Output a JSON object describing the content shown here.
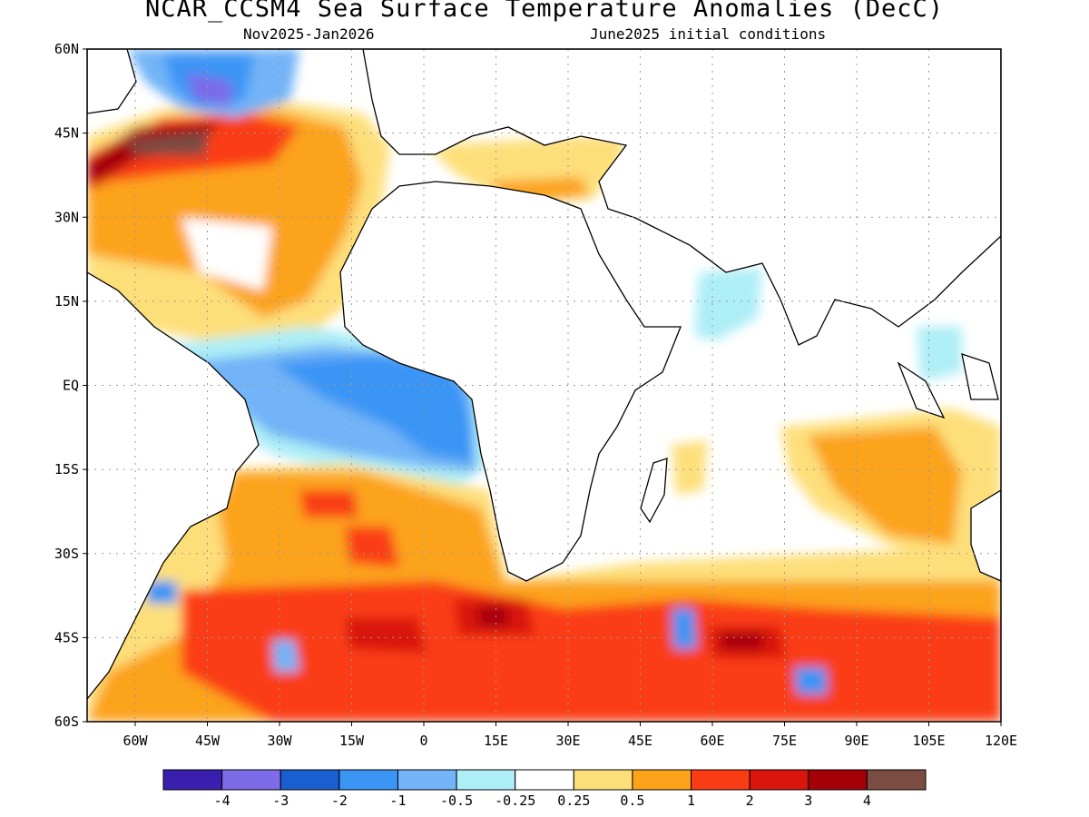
{
  "title": "NCAR_CCSM4 Sea Surface Temperature Anomalies (DecC)",
  "period": "Nov2025-Jan2026",
  "initial_conditions": "June2025 initial conditions",
  "map": {
    "lon_range": [
      -70,
      120
    ],
    "lat_range": [
      -60,
      60
    ],
    "lat_ticks": [
      {
        "value": 60,
        "label": "60N"
      },
      {
        "value": 45,
        "label": "45N"
      },
      {
        "value": 30,
        "label": "30N"
      },
      {
        "value": 15,
        "label": "15N"
      },
      {
        "value": 0,
        "label": "EQ"
      },
      {
        "value": -15,
        "label": "15S"
      },
      {
        "value": -30,
        "label": "30S"
      },
      {
        "value": -45,
        "label": "45S"
      },
      {
        "value": -60,
        "label": "60S"
      }
    ],
    "lon_ticks": [
      {
        "value": -60,
        "label": "60W"
      },
      {
        "value": -45,
        "label": "45W"
      },
      {
        "value": -30,
        "label": "30W"
      },
      {
        "value": -15,
        "label": "15W"
      },
      {
        "value": 0,
        "label": "0"
      },
      {
        "value": 15,
        "label": "15E"
      },
      {
        "value": 30,
        "label": "30E"
      },
      {
        "value": 45,
        "label": "45E"
      },
      {
        "value": 60,
        "label": "60E"
      },
      {
        "value": 75,
        "label": "75E"
      },
      {
        "value": 90,
        "label": "90E"
      },
      {
        "value": 105,
        "label": "105E"
      },
      {
        "value": 120,
        "label": "120E"
      }
    ],
    "gridlines": true
  },
  "colorbar": {
    "colors": [
      "#3a1fae",
      "#7d6be8",
      "#1a5fd0",
      "#3a95f5",
      "#72b4f7",
      "#aeeef6",
      "#ffffff",
      "#fddf7a",
      "#fca31a",
      "#fa3c14",
      "#d9150c",
      "#a50008",
      "#7a4c42"
    ],
    "labels": [
      "-4",
      "-3",
      "-2",
      "-1",
      "-0.5",
      "-0.25",
      "0.25",
      "0.5",
      "1",
      "2",
      "3",
      "4"
    ]
  }
}
